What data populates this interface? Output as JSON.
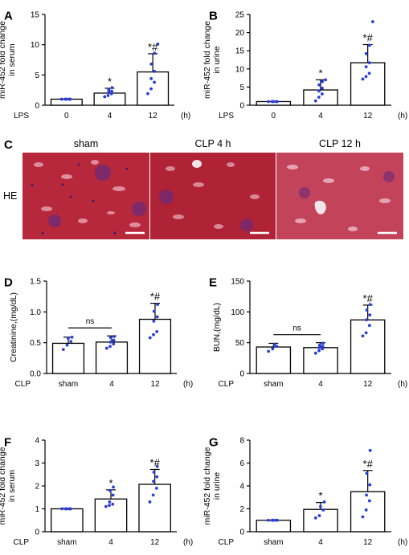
{
  "panels": {
    "A": {
      "label": "A",
      "ylabel_lines": [
        "miR-452 fold change",
        "in serum"
      ],
      "xgroup": "LPS",
      "unit": "(h)",
      "categories": [
        "0",
        "4",
        "12"
      ],
      "means": [
        1.0,
        2.0,
        5.5
      ],
      "sd": [
        0.05,
        0.8,
        3.0
      ],
      "ylim": [
        0,
        15
      ],
      "yticks": [
        "0",
        "5",
        "10",
        "15"
      ],
      "signif": [
        "",
        "*",
        "*#"
      ],
      "points": [
        [
          1,
          1,
          1,
          1,
          1
        ],
        [
          1.4,
          1.6,
          1.9,
          2.1,
          2.3,
          2.6,
          2.9
        ],
        [
          1.9,
          2.7,
          3.8,
          4.4,
          5.6,
          6.8,
          8.6,
          10.1
        ]
      ]
    },
    "B": {
      "label": "B",
      "ylabel_lines": [
        "miR-452 fold change",
        "in urine"
      ],
      "xgroup": "LPS",
      "unit": "(h)",
      "categories": [
        "0",
        "4",
        "12"
      ],
      "means": [
        1.0,
        4.2,
        11.7
      ],
      "sd": [
        0.05,
        2.8,
        5.0
      ],
      "ylim": [
        0,
        25
      ],
      "yticks": [
        "0",
        "5",
        "10",
        "15",
        "20",
        "25"
      ],
      "signif": [
        "",
        "*",
        "*#"
      ],
      "points": [
        [
          1,
          1,
          1,
          1,
          1
        ],
        [
          1.2,
          2.2,
          3.1,
          3.9,
          4.7,
          5.6,
          6.5,
          7.0
        ],
        [
          7.2,
          7.9,
          8.8,
          10.6,
          11.7,
          14.2,
          16.5,
          23.0
        ]
      ]
    },
    "C": {
      "label": "C",
      "row_label": "HE",
      "headers": [
        "sham",
        "CLP 4 h",
        "CLP 12 h"
      ]
    },
    "D": {
      "label": "D",
      "ylabel_lines": [
        "Creatinine,(mg/dL)"
      ],
      "xgroup": "CLP",
      "unit": "(h)",
      "categories": [
        "sham",
        "4",
        "12"
      ],
      "means": [
        0.49,
        0.51,
        0.88
      ],
      "sd": [
        0.1,
        0.1,
        0.26
      ],
      "ylim": [
        0,
        1.5
      ],
      "yticks": [
        "0.0",
        "0.5",
        "1.0",
        "1.5"
      ],
      "signif": [
        "",
        "",
        "*#"
      ],
      "ns_label": "ns",
      "points": [
        [
          0.39,
          0.46,
          0.52,
          0.57,
          0.59
        ],
        [
          0.41,
          0.44,
          0.48,
          0.51,
          0.54,
          0.58,
          0.6
        ],
        [
          0.58,
          0.63,
          0.68,
          0.85,
          0.92,
          1.01,
          1.12
        ]
      ]
    },
    "E": {
      "label": "E",
      "ylabel_lines": [
        "BUN,(mg/dL)"
      ],
      "xgroup": "CLP",
      "unit": "(h)",
      "categories": [
        "sham",
        "4",
        "12"
      ],
      "means": [
        43,
        42,
        87
      ],
      "sd": [
        6,
        8,
        24
      ],
      "ylim": [
        0,
        150
      ],
      "yticks": [
        "0",
        "50",
        "100",
        "150"
      ],
      "signif": [
        "",
        "",
        "*#"
      ],
      "ns_label": "ns",
      "points": [
        [
          36,
          40,
          44,
          47
        ],
        [
          33,
          37,
          40,
          42,
          44,
          46,
          49
        ],
        [
          61,
          66,
          78,
          87,
          95,
          103,
          112
        ]
      ]
    },
    "F": {
      "label": "F",
      "ylabel_lines": [
        "miR-452 fold change",
        "in serum"
      ],
      "xgroup": "CLP",
      "unit": "(h)",
      "categories": [
        "sham",
        "4",
        "12"
      ],
      "means": [
        1.0,
        1.43,
        2.07
      ],
      "sd": [
        0.02,
        0.4,
        0.65
      ],
      "ylim": [
        0,
        4
      ],
      "yticks": [
        "0",
        "1",
        "2",
        "3",
        "4"
      ],
      "signif": [
        "",
        "*",
        "*#"
      ],
      "points": [
        [
          1,
          1,
          1,
          1,
          1
        ],
        [
          1.1,
          1.15,
          1.2,
          1.3,
          1.6,
          1.8,
          1.95
        ],
        [
          1.3,
          1.6,
          1.9,
          2.2,
          2.4,
          2.6,
          2.85
        ]
      ]
    },
    "G": {
      "label": "G",
      "ylabel_lines": [
        "miR-452 fold change",
        "in urine"
      ],
      "xgroup": "CLP",
      "unit": "(h)",
      "categories": [
        "sham",
        "4",
        "12"
      ],
      "means": [
        1.0,
        1.95,
        3.5
      ],
      "sd": [
        0.02,
        0.6,
        1.85
      ],
      "ylim": [
        0,
        8
      ],
      "yticks": [
        "0",
        "2",
        "4",
        "6",
        "8"
      ],
      "signif": [
        "",
        "*",
        "*#"
      ],
      "points": [
        [
          1,
          1,
          1,
          1,
          1
        ],
        [
          1.2,
          1.4,
          1.9,
          2.2,
          2.6
        ],
        [
          1.3,
          1.9,
          2.7,
          3.2,
          4.1,
          5.1,
          7.1
        ]
      ]
    }
  },
  "colors": {
    "dots": "#2b3fd6",
    "tissue": "#b7283c"
  },
  "chart_data": [
    {
      "type": "bar",
      "panel": "A",
      "categories": [
        "0",
        "4",
        "12"
      ],
      "values": [
        1.0,
        2.0,
        5.5
      ],
      "error": [
        0.05,
        0.8,
        3.0
      ],
      "ylabel": "miR-452 fold change in serum",
      "xlabel": "LPS (h)",
      "ylim": [
        0,
        15
      ]
    },
    {
      "type": "bar",
      "panel": "B",
      "categories": [
        "0",
        "4",
        "12"
      ],
      "values": [
        1.0,
        4.2,
        11.7
      ],
      "error": [
        0.05,
        2.8,
        5.0
      ],
      "ylabel": "miR-452 fold change in urine",
      "xlabel": "LPS (h)",
      "ylim": [
        0,
        25
      ]
    },
    {
      "type": "bar",
      "panel": "D",
      "categories": [
        "sham",
        "4",
        "12"
      ],
      "values": [
        0.49,
        0.51,
        0.88
      ],
      "error": [
        0.1,
        0.1,
        0.26
      ],
      "ylabel": "Creatinine,(mg/dL)",
      "xlabel": "CLP (h)",
      "ylim": [
        0,
        1.5
      ]
    },
    {
      "type": "bar",
      "panel": "E",
      "categories": [
        "sham",
        "4",
        "12"
      ],
      "values": [
        43,
        42,
        87
      ],
      "error": [
        6,
        8,
        24
      ],
      "ylabel": "BUN,(mg/dL)",
      "xlabel": "CLP (h)",
      "ylim": [
        0,
        150
      ]
    },
    {
      "type": "bar",
      "panel": "F",
      "categories": [
        "sham",
        "4",
        "12"
      ],
      "values": [
        1.0,
        1.43,
        2.07
      ],
      "error": [
        0.02,
        0.4,
        0.65
      ],
      "ylabel": "miR-452 fold change in serum",
      "xlabel": "CLP (h)",
      "ylim": [
        0,
        4
      ]
    },
    {
      "type": "bar",
      "panel": "G",
      "categories": [
        "sham",
        "4",
        "12"
      ],
      "values": [
        1.0,
        1.95,
        3.5
      ],
      "error": [
        0.02,
        0.6,
        1.85
      ],
      "ylabel": "miR-452 fold change in urine",
      "xlabel": "CLP (h)",
      "ylim": [
        0,
        8
      ]
    }
  ]
}
